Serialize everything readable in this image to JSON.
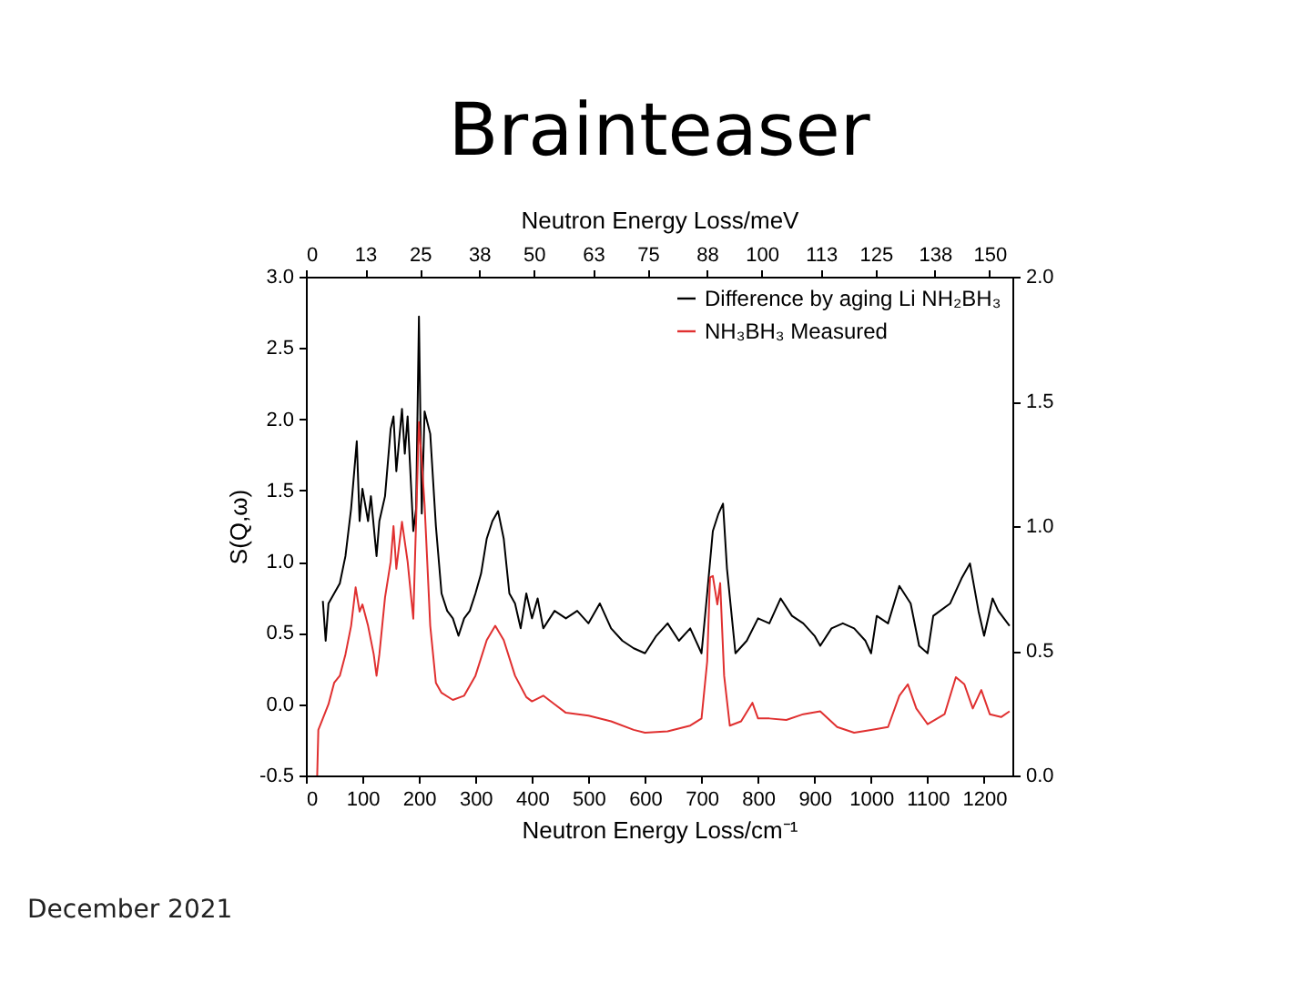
{
  "chart_data": {
    "type": "line",
    "title": "Brainteaser",
    "xlabel": "Neutron Energy Loss/cm⁻¹",
    "x2label": "Neutron Energy Loss/meV",
    "ylabel": "S(Q,ω)",
    "annotations": [
      "December 2021"
    ],
    "xlim": [
      0,
      1250
    ],
    "xticks": [
      0,
      100,
      200,
      300,
      400,
      500,
      600,
      700,
      800,
      900,
      1000,
      1100,
      1200
    ],
    "x2lim": [
      0,
      155
    ],
    "x2ticks": [
      0,
      13,
      25,
      38,
      50,
      63,
      75,
      88,
      100,
      113,
      125,
      138,
      150
    ],
    "ylim": [
      -0.5,
      3
    ],
    "yticks": [
      {
        "value": -0.5,
        "label": "-0.5"
      },
      {
        "value": 0,
        "label": "0.0"
      },
      {
        "value": 0.5,
        "label": "0.5"
      },
      {
        "value": 1,
        "label": "1.0"
      },
      {
        "value": 1.5,
        "label": "1.5"
      },
      {
        "value": 2,
        "label": "2.0"
      },
      {
        "value": 2.5,
        "label": "2.5"
      },
      {
        "value": 3,
        "label": "3.0"
      }
    ],
    "y2lim": [
      0,
      2
    ],
    "y2ticks": [
      {
        "value": 0,
        "label": "0.0"
      },
      {
        "value": 0.5,
        "label": "0.5"
      },
      {
        "value": 1,
        "label": "1.0"
      },
      {
        "value": 1.5,
        "label": "1.5"
      },
      {
        "value": 2,
        "label": "2.0"
      }
    ],
    "legend": "top right",
    "grid": false,
    "line_style": "solid",
    "marker": "none",
    "series": [
      {
        "name": "Difference by aging Li NH₂BH₃",
        "color": "#000000",
        "axis": "y2",
        "x": [
          30,
          35,
          40,
          50,
          60,
          70,
          80,
          90,
          95,
          100,
          110,
          115,
          125,
          130,
          140,
          150,
          155,
          160,
          170,
          175,
          180,
          190,
          195,
          200,
          205,
          210,
          220,
          230,
          240,
          250,
          260,
          270,
          280,
          290,
          300,
          310,
          320,
          330,
          340,
          350,
          360,
          370,
          380,
          390,
          400,
          410,
          420,
          440,
          460,
          480,
          500,
          520,
          540,
          560,
          580,
          600,
          620,
          640,
          660,
          680,
          700,
          710,
          720,
          730,
          738,
          745,
          760,
          780,
          800,
          820,
          840,
          860,
          880,
          900,
          910,
          930,
          950,
          970,
          990,
          1000,
          1010,
          1030,
          1050,
          1070,
          1085,
          1100,
          1110,
          1140,
          1160,
          1175,
          1190,
          1200,
          1215,
          1225,
          1235,
          1245
        ],
        "values": [
          0.7,
          0.54,
          0.69,
          0.73,
          0.77,
          0.88,
          1.07,
          1.34,
          1.02,
          1.15,
          1.02,
          1.12,
          0.88,
          1.02,
          1.12,
          1.39,
          1.44,
          1.22,
          1.47,
          1.29,
          1.44,
          0.98,
          1.07,
          1.84,
          1.05,
          1.46,
          1.37,
          1.0,
          0.73,
          0.66,
          0.63,
          0.56,
          0.63,
          0.66,
          0.73,
          0.81,
          0.95,
          1.02,
          1.06,
          0.95,
          0.73,
          0.69,
          0.59,
          0.73,
          0.63,
          0.71,
          0.59,
          0.66,
          0.63,
          0.66,
          0.61,
          0.69,
          0.59,
          0.54,
          0.51,
          0.49,
          0.56,
          0.61,
          0.54,
          0.59,
          0.49,
          0.73,
          0.98,
          1.05,
          1.09,
          0.83,
          0.49,
          0.54,
          0.63,
          0.61,
          0.71,
          0.64,
          0.61,
          0.56,
          0.52,
          0.59,
          0.61,
          0.59,
          0.54,
          0.49,
          0.64,
          0.61,
          0.76,
          0.69,
          0.52,
          0.49,
          0.64,
          0.69,
          0.79,
          0.85,
          0.66,
          0.56,
          0.71,
          0.66,
          0.63,
          0.6
        ]
      },
      {
        "name": "NH₃BH₃ Measured",
        "color": "#e03030",
        "axis": "y",
        "x": [
          20,
          22,
          30,
          40,
          50,
          60,
          70,
          80,
          88,
          95,
          100,
          110,
          120,
          125,
          130,
          140,
          150,
          155,
          160,
          170,
          180,
          190,
          200,
          205,
          210,
          220,
          230,
          240,
          260,
          280,
          300,
          320,
          335,
          350,
          370,
          390,
          400,
          420,
          440,
          460,
          500,
          540,
          580,
          600,
          640,
          680,
          700,
          710,
          715,
          720,
          728,
          733,
          740,
          750,
          770,
          790,
          800,
          820,
          850,
          880,
          910,
          940,
          970,
          1000,
          1030,
          1050,
          1065,
          1080,
          1100,
          1130,
          1150,
          1165,
          1180,
          1195,
          1210,
          1230,
          1245
        ],
        "values": [
          -0.5,
          -0.18,
          -0.1,
          0.0,
          0.15,
          0.2,
          0.35,
          0.55,
          0.82,
          0.65,
          0.7,
          0.55,
          0.35,
          0.2,
          0.35,
          0.75,
          1.0,
          1.25,
          0.95,
          1.28,
          1.0,
          0.6,
          1.98,
          1.7,
          1.4,
          0.55,
          0.15,
          0.08,
          0.03,
          0.06,
          0.2,
          0.45,
          0.55,
          0.45,
          0.2,
          0.05,
          0.02,
          0.06,
          0.0,
          -0.06,
          -0.08,
          -0.12,
          -0.18,
          -0.2,
          -0.19,
          -0.15,
          -0.1,
          0.3,
          0.89,
          0.9,
          0.7,
          0.85,
          0.2,
          -0.15,
          -0.12,
          0.01,
          -0.1,
          -0.1,
          -0.11,
          -0.07,
          -0.05,
          -0.16,
          -0.2,
          -0.18,
          -0.16,
          0.06,
          0.14,
          -0.03,
          -0.14,
          -0.07,
          0.19,
          0.14,
          -0.03,
          0.1,
          -0.07,
          -0.09,
          -0.05
        ]
      }
    ]
  }
}
